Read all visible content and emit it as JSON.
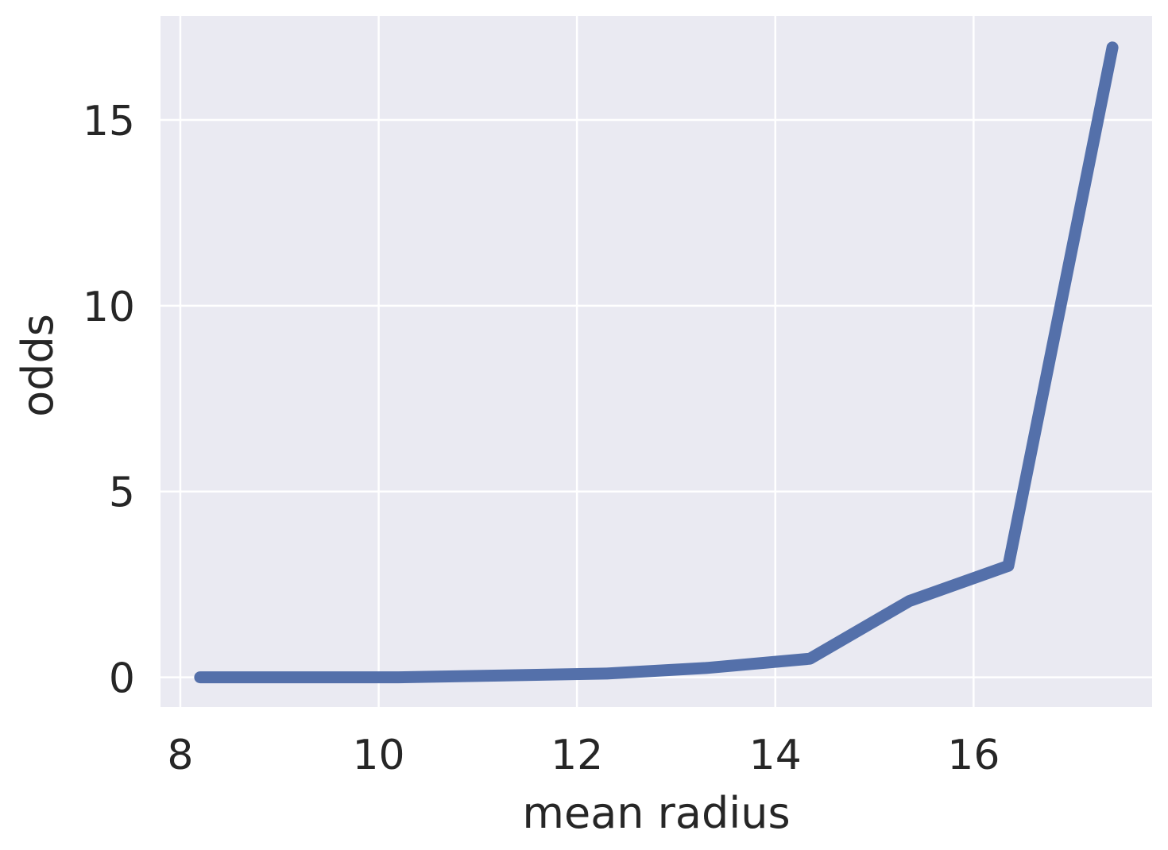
{
  "chart_data": {
    "type": "line",
    "xlabel": "mean radius",
    "ylabel": "odds",
    "xlim": [
      7.8,
      17.8
    ],
    "ylim": [
      -0.8,
      17.8
    ],
    "xticks": [
      8,
      10,
      12,
      14,
      16
    ],
    "yticks": [
      0,
      5,
      10,
      15
    ],
    "xtick_labels": [
      "8",
      "10",
      "12",
      "14",
      "16"
    ],
    "ytick_labels": [
      "0",
      "5",
      "10",
      "15"
    ],
    "grid": true,
    "background_color": "#eaeaf2",
    "grid_color": "#ffffff",
    "series": [
      {
        "color": "#5470aa",
        "x": [
          8.2,
          10.2,
          12.3,
          13.3,
          14.35,
          15.35,
          16.35,
          17.4
        ],
        "y": [
          0.0,
          0.0,
          0.1,
          0.25,
          0.5,
          2.05,
          3.0,
          16.95
        ]
      }
    ]
  }
}
